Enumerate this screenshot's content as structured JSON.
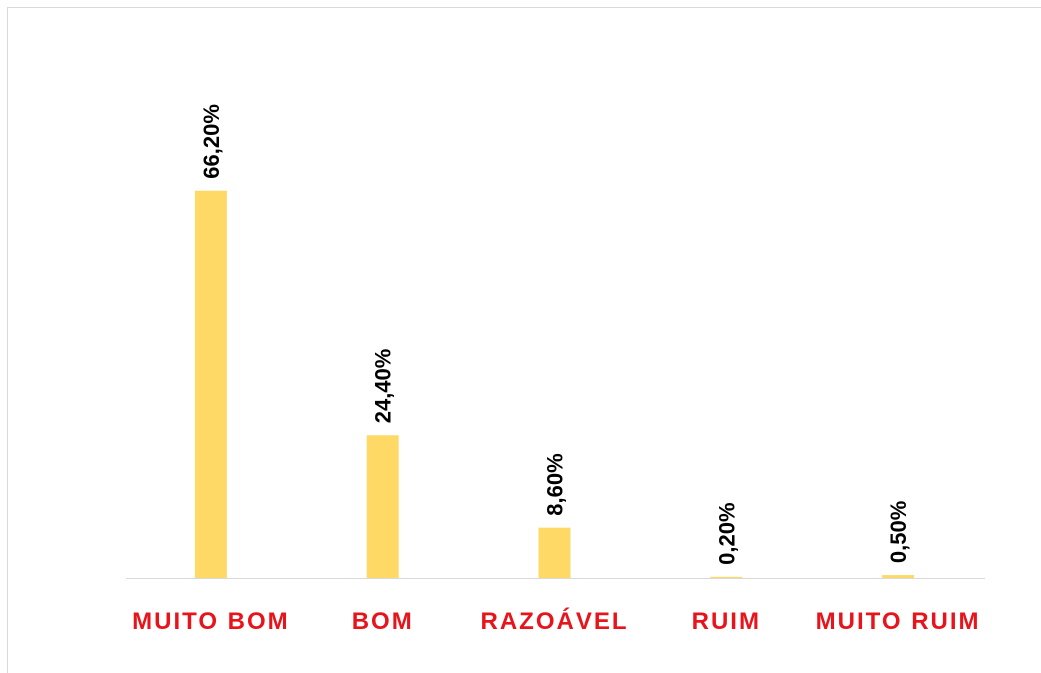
{
  "chart_data": {
    "type": "bar",
    "categories": [
      "MUITO BOM",
      "BOM",
      "RAZOÁVEL",
      "RUIM",
      "MUITO RUIM"
    ],
    "values": [
      66.2,
      24.4,
      8.6,
      0.2,
      0.5
    ],
    "value_labels": [
      "66,20%",
      "24,40%",
      "8,60%",
      "0,20%",
      "0,50%"
    ],
    "color": "#ffd966"
  }
}
